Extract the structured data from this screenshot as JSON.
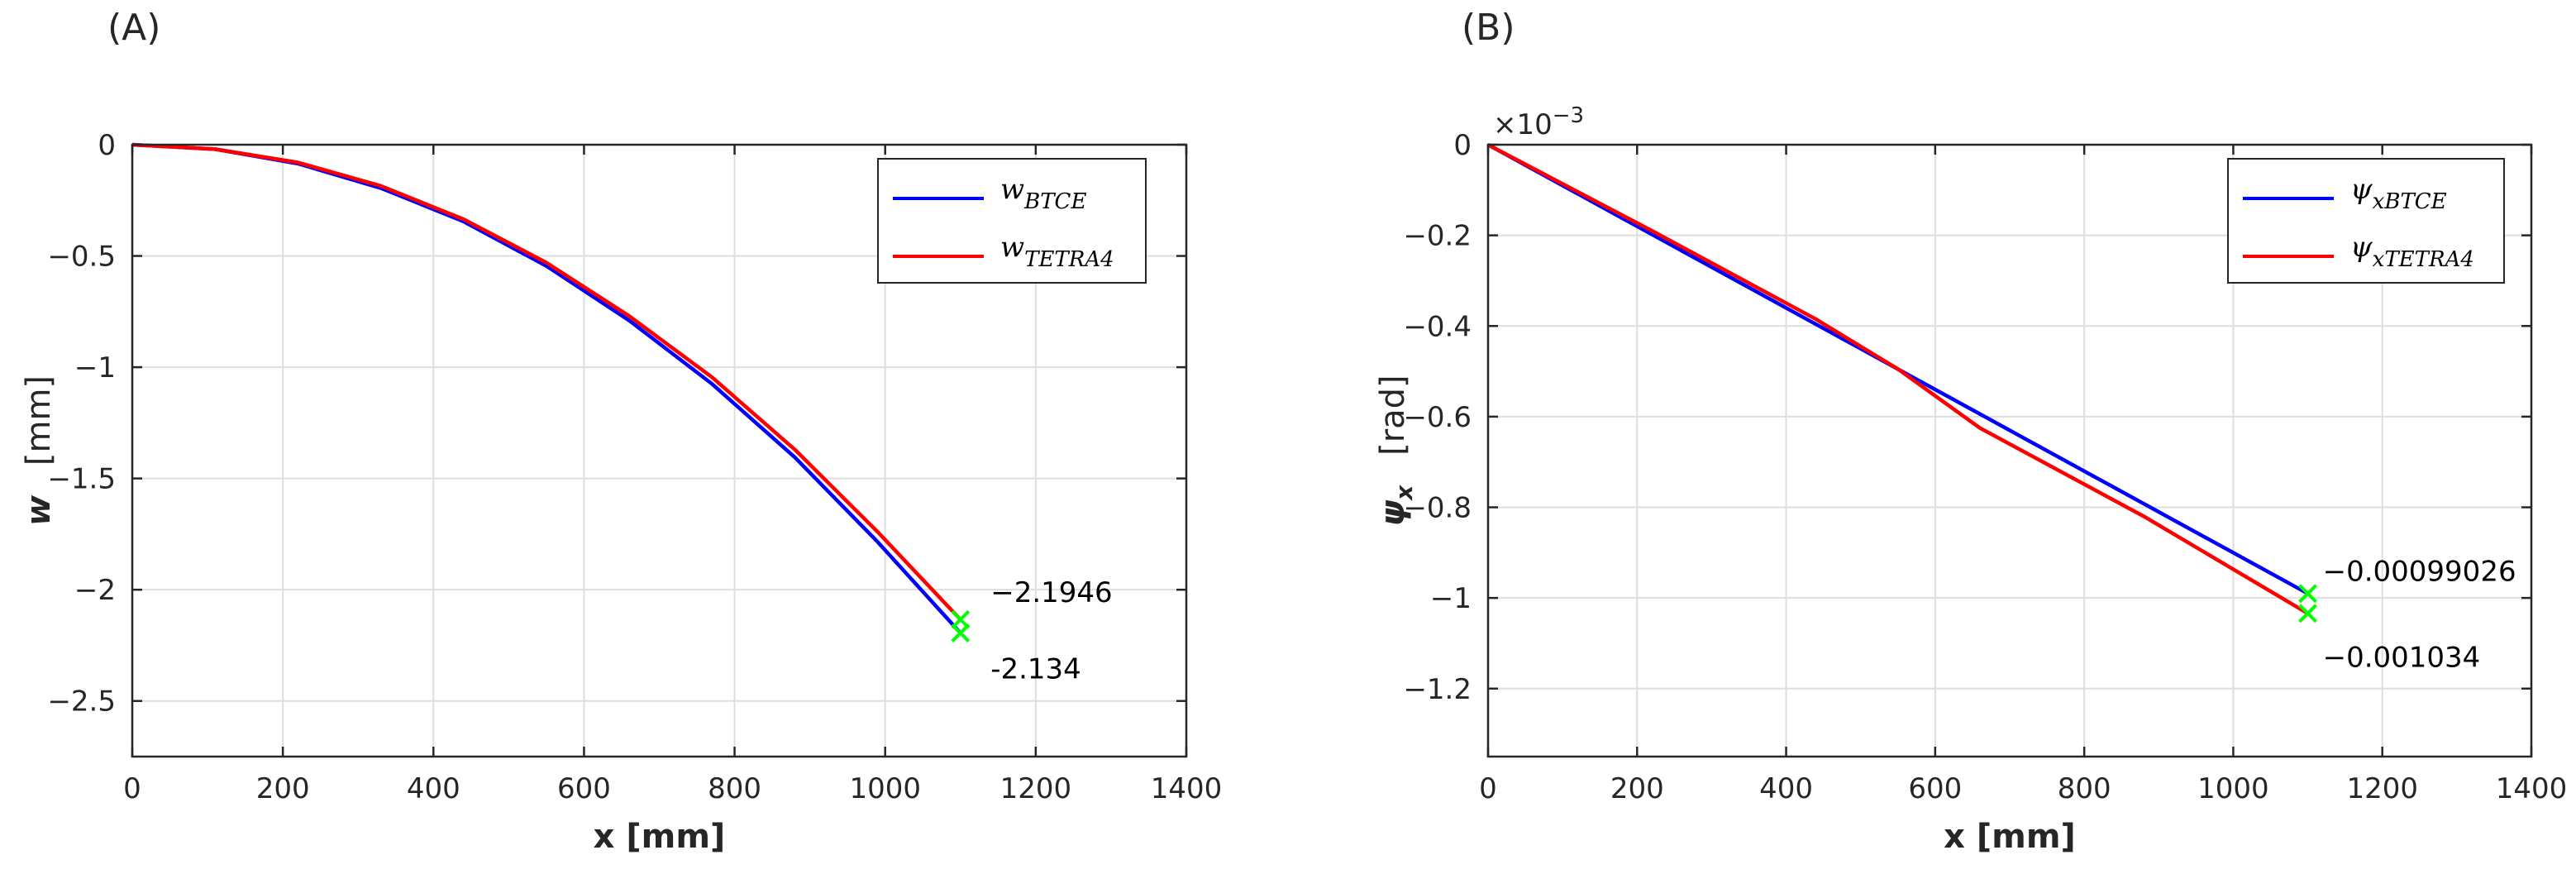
{
  "chart_data": [
    {
      "type": "line",
      "panel_label": "(A)",
      "title": "",
      "xlabel": "x [mm]",
      "ylabel_main": "w",
      "ylabel_unit": "[mm]",
      "xlim": [
        0,
        1400
      ],
      "ylim": [
        -2.75,
        0
      ],
      "xticks": [
        0,
        200,
        400,
        600,
        800,
        1000,
        1200,
        1400
      ],
      "xtick_labels": [
        "0",
        "200",
        "400",
        "600",
        "800",
        "1000",
        "1200",
        "1400"
      ],
      "yticks": [
        0,
        -0.5,
        -1,
        -1.5,
        -2,
        -2.5
      ],
      "ytick_labels": [
        "0",
        "−0.5",
        "−1",
        "−1.5",
        "−2",
        "−2.5"
      ],
      "grid": true,
      "legend_position": "top-right",
      "series": [
        {
          "name": "w_BTCE",
          "legend_main": "w",
          "legend_sub": "BTCE",
          "color": "#0000ff",
          "x": [
            0,
            110,
            220,
            330,
            440,
            550,
            660,
            770,
            880,
            990,
            1100
          ],
          "y": [
            0,
            -0.02,
            -0.085,
            -0.195,
            -0.345,
            -0.545,
            -0.79,
            -1.075,
            -1.405,
            -1.785,
            -2.1946
          ]
        },
        {
          "name": "w_TETRA4",
          "legend_main": "w",
          "legend_sub": "TETRA4",
          "color": "#ff0000",
          "x": [
            0,
            110,
            220,
            330,
            440,
            550,
            660,
            770,
            880,
            990,
            1100
          ],
          "y": [
            0,
            -0.02,
            -0.08,
            -0.185,
            -0.335,
            -0.53,
            -0.77,
            -1.045,
            -1.37,
            -1.74,
            -2.134
          ]
        }
      ],
      "markers": [
        {
          "x": 1100,
          "y": -2.134,
          "color": "#00ff00"
        },
        {
          "x": 1100,
          "y": -2.1946,
          "color": "#00ff00"
        }
      ],
      "annotations": [
        {
          "text": "−2.1946",
          "x": 1140,
          "y": -2.01
        },
        {
          "text": "-2.134",
          "x": 1140,
          "y": -2.355
        }
      ]
    },
    {
      "type": "line",
      "panel_label": "(B)",
      "title": "",
      "xlabel": "x [mm]",
      "ylabel_main": "ψ",
      "ylabel_sub": "x",
      "ylabel_unit": "[rad]",
      "exponent_label": "×10",
      "exponent_power": "−3",
      "xlim": [
        0,
        1400
      ],
      "ylim": [
        -1.35,
        0
      ],
      "xticks": [
        0,
        200,
        400,
        600,
        800,
        1000,
        1200,
        1400
      ],
      "xtick_labels": [
        "0",
        "200",
        "400",
        "600",
        "800",
        "1000",
        "1200",
        "1400"
      ],
      "yticks": [
        0,
        -0.2,
        -0.4,
        -0.6,
        -0.8,
        -1,
        -1.2
      ],
      "ytick_labels": [
        "0",
        "−0.2",
        "−0.4",
        "−0.6",
        "−0.8",
        "−1",
        "−1.2"
      ],
      "grid": true,
      "legend_position": "top-right",
      "series": [
        {
          "name": "ψ_xBTCE",
          "legend_main": "ψ",
          "legend_sub": "xBTCE",
          "color": "#0000ff",
          "x": [
            0,
            1100
          ],
          "y": [
            0,
            -0.99026
          ]
        },
        {
          "name": "ψ_xTETRA4",
          "legend_main": "ψ",
          "legend_sub": "xTETRA4",
          "color": "#ff0000",
          "x": [
            0,
            220,
            440,
            550,
            660,
            880,
            1100
          ],
          "y": [
            0,
            -0.19,
            -0.385,
            -0.495,
            -0.625,
            -0.82,
            -1.034
          ]
        }
      ],
      "markers": [
        {
          "x": 1100,
          "y": -0.99026,
          "color": "#00ff00"
        },
        {
          "x": 1100,
          "y": -1.034,
          "color": "#00ff00"
        }
      ],
      "annotations": [
        {
          "text": "−0.00099026",
          "x": 1120,
          "y": -0.94
        },
        {
          "text": "−0.001034",
          "x": 1120,
          "y": -1.13
        }
      ]
    }
  ]
}
